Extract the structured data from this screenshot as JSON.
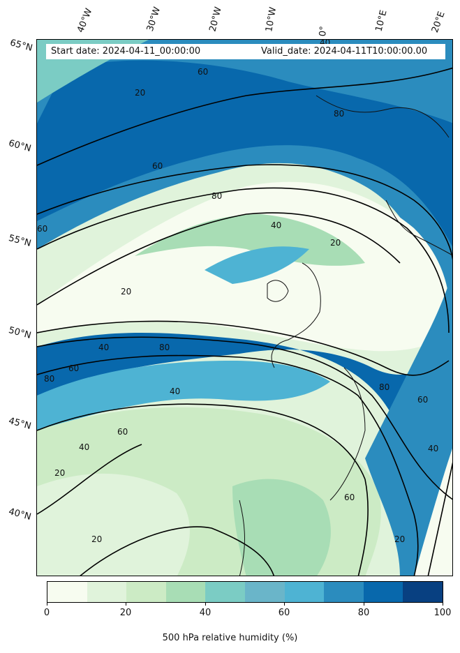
{
  "header": {
    "start_date": "Start date: 2024-04-11_00:00:00",
    "valid_date": "Valid_date: 2024-04-11T10:00:00.00"
  },
  "map": {
    "longitude_labels": [
      "40°W",
      "30°W",
      "20°W",
      "10°W",
      "0°",
      "10°E",
      "20°E"
    ],
    "latitude_labels": [
      "65°N",
      "60°N",
      "55°N",
      "50°N",
      "45°N",
      "40°N"
    ],
    "contour_labels": [
      "20",
      "40",
      "60",
      "80"
    ],
    "colors": {
      "level_0_10": "#f7fcf0",
      "level_10_20": "#e0f3db",
      "level_20_30": "#ccebc5",
      "level_30_40": "#a8ddb5",
      "level_40_50": "#7bccc4",
      "level_50_60": "#6ab5c9",
      "level_60_70": "#4eb3d3",
      "level_70_80": "#2b8cbe",
      "level_80_90": "#0868ac",
      "level_90_100": "#084081"
    }
  },
  "colorbar": {
    "ticks": [
      "0",
      "20",
      "40",
      "60",
      "80",
      "100"
    ],
    "label": "500 hPa relative humidity (%)",
    "min": 0,
    "max": 100,
    "colors": [
      "#f7fcf0",
      "#e0f3db",
      "#ccebc5",
      "#a8ddb5",
      "#7bccc4",
      "#6ab5c9",
      "#4eb3d3",
      "#2b8cbe",
      "#0868ac",
      "#084081"
    ]
  }
}
